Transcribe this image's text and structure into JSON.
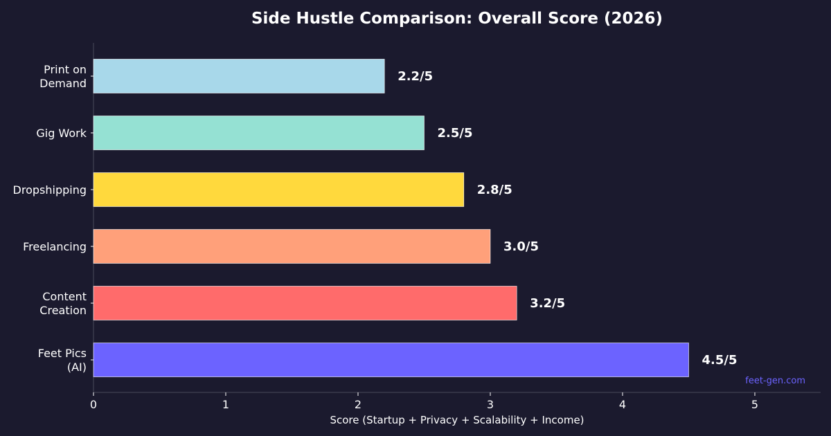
{
  "chart_data": {
    "type": "bar",
    "orientation": "horizontal",
    "title": "Side Hustle Comparison: Overall Score (2026)",
    "xlabel": "Score (Startup + Privacy + Scalability + Income)",
    "ylabel": "",
    "xlim": [
      0,
      5.5
    ],
    "xticks": [
      "0",
      "1",
      "2",
      "3",
      "4",
      "5"
    ],
    "categories": [
      [
        "Print on",
        "Demand"
      ],
      [
        "Gig Work"
      ],
      [
        "Dropshipping"
      ],
      [
        "Freelancing"
      ],
      [
        "Content",
        "Creation"
      ],
      [
        "Feet Pics",
        "(AI)"
      ]
    ],
    "values": [
      2.2,
      2.5,
      2.8,
      3.0,
      3.2,
      4.5
    ],
    "value_labels": [
      "2.2/5",
      "2.5/5",
      "2.8/5",
      "3.0/5",
      "3.2/5",
      "4.5/5"
    ],
    "colors": [
      "#a8d8ea",
      "#95e1d3",
      "#ffd93d",
      "#ffa07a",
      "#ff6b6b",
      "#6c63ff"
    ],
    "grid": false,
    "legend": "none",
    "background": "#1b1a2e",
    "watermark": "feet-gen.com",
    "watermark_color": "#6c63ff"
  }
}
